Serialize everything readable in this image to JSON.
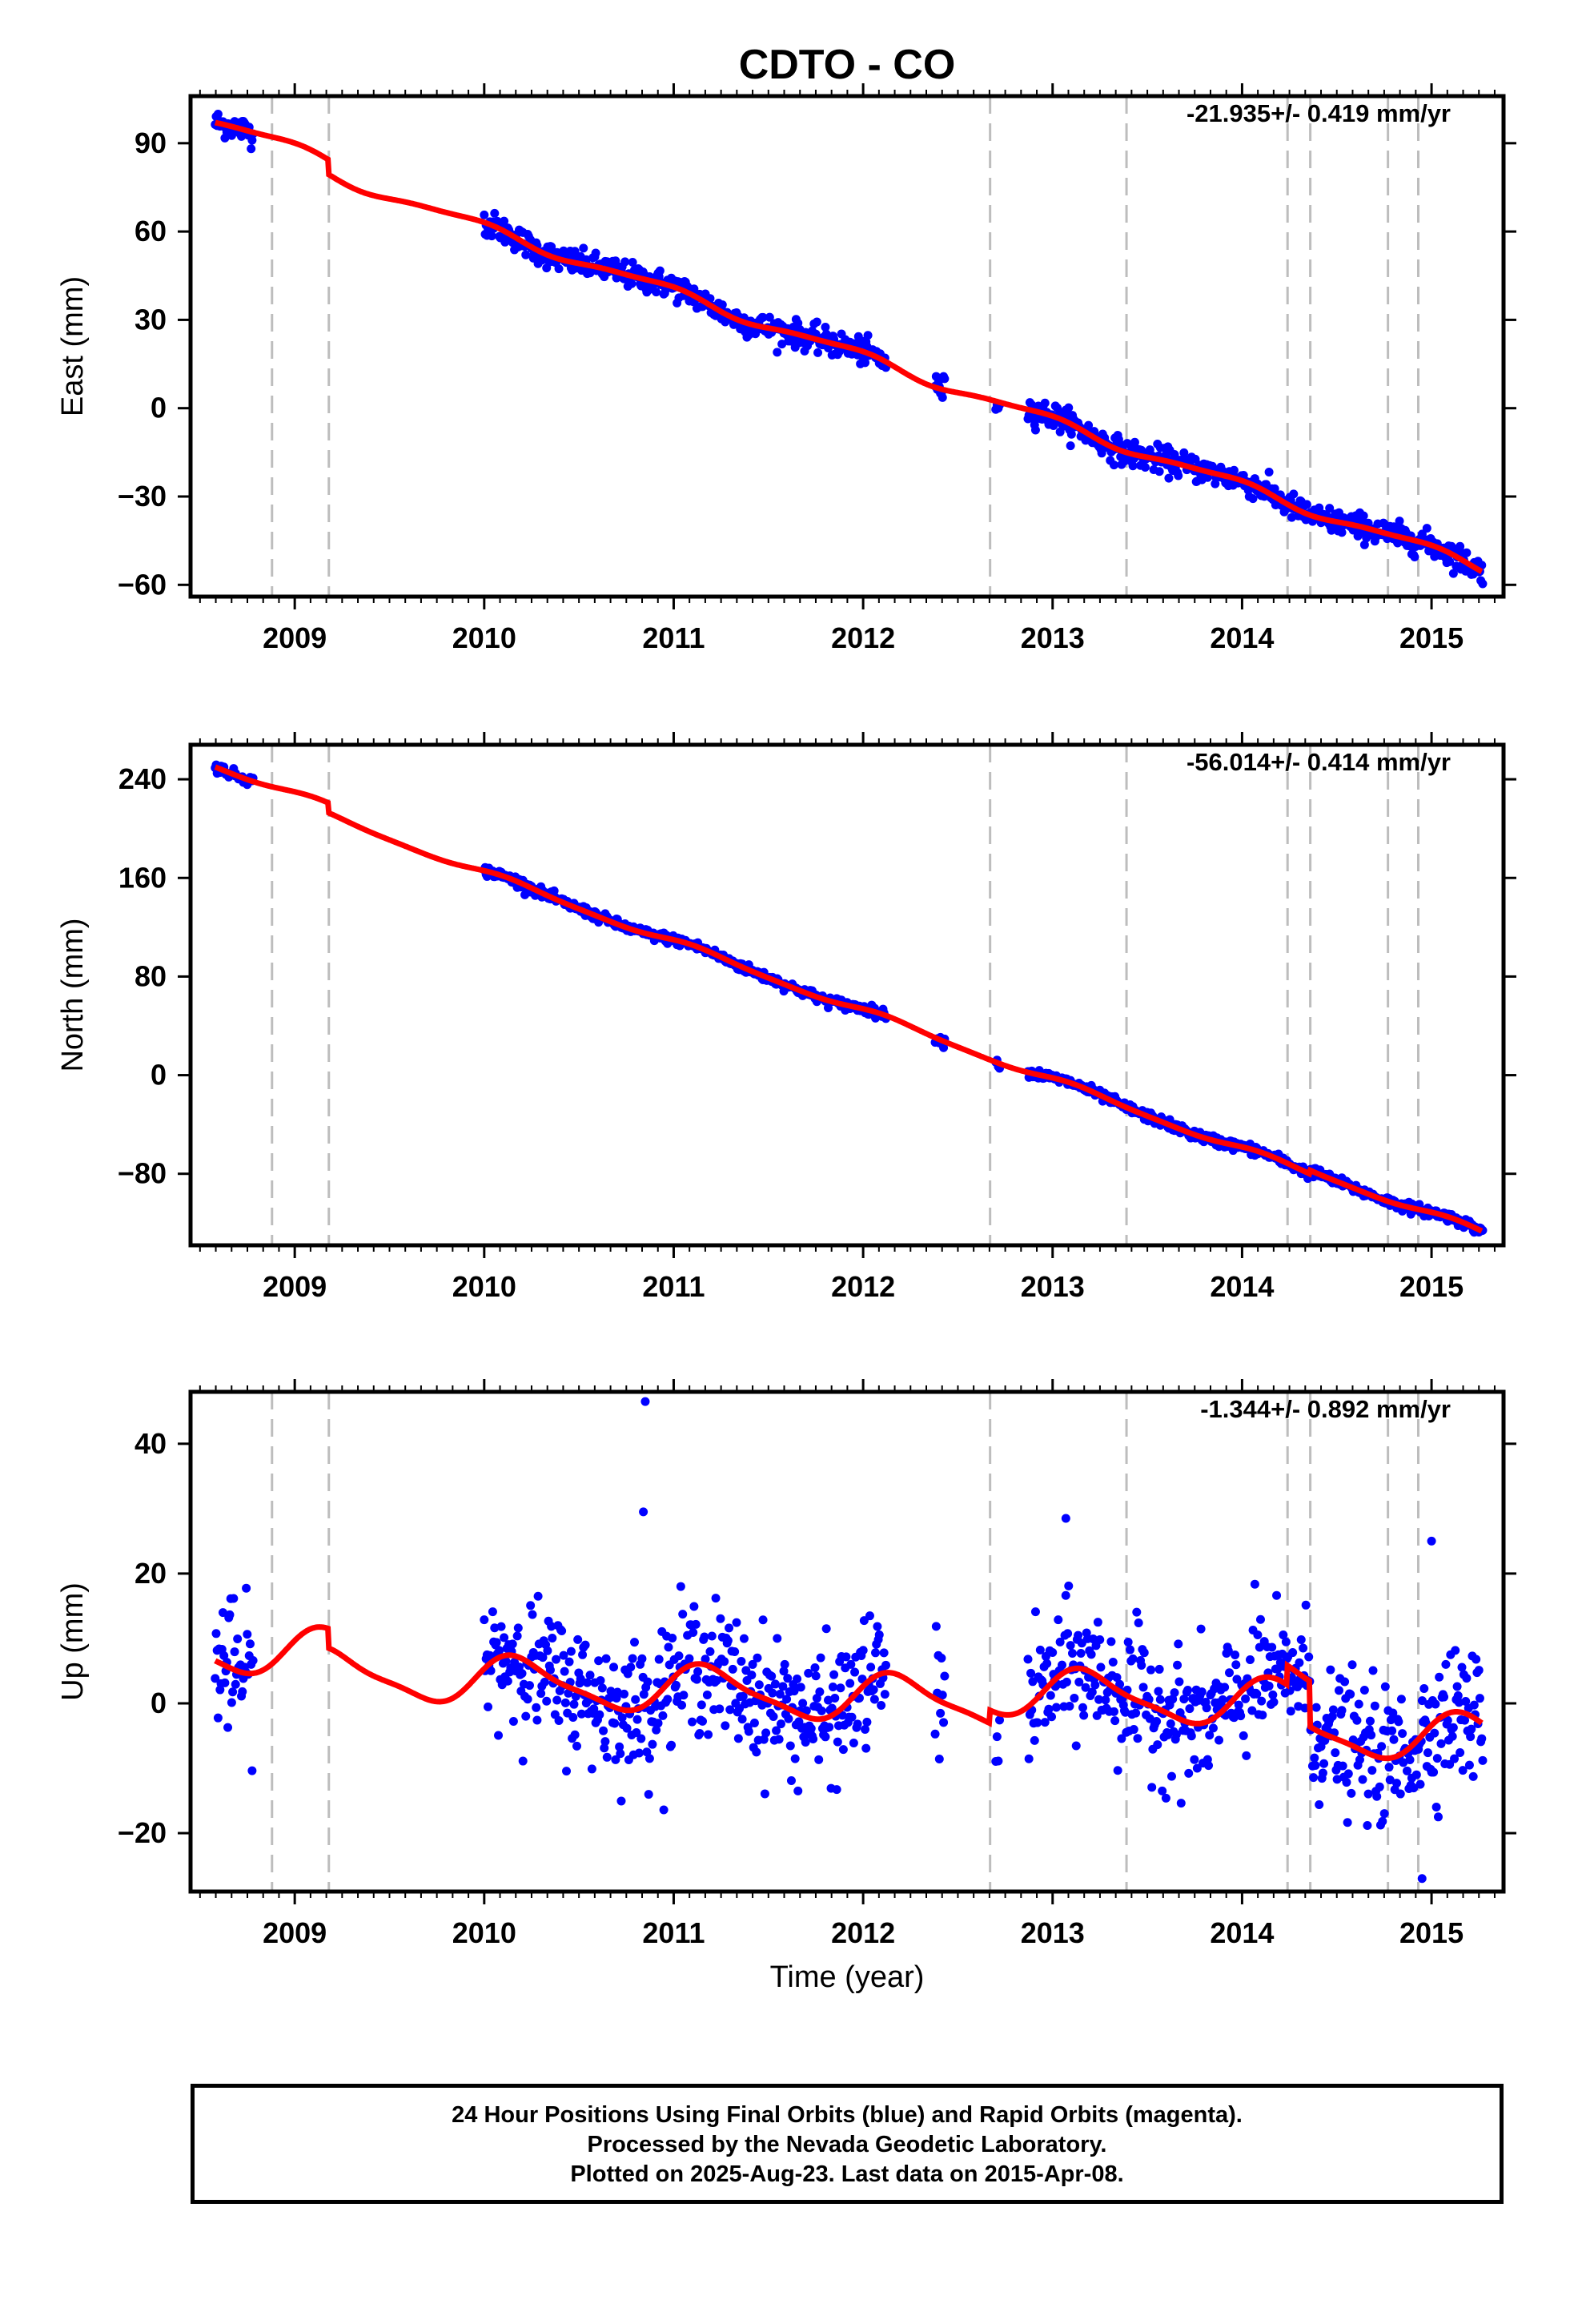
{
  "title": "CDTO - CO",
  "colors": {
    "data": "#0000ff",
    "model": "#ff0000",
    "event_line": "#bdbdbd",
    "frame": "#000000"
  },
  "x_axis": {
    "label": "Time (year)",
    "ticks": [
      2009,
      2010,
      2011,
      2012,
      2013,
      2014,
      2015
    ],
    "tick_labels": [
      "2009",
      "2010",
      "2011",
      "2012",
      "2013",
      "2014",
      "2015"
    ],
    "range": [
      2008.45,
      2015.38
    ],
    "minor_ticks_per_year": 12
  },
  "event_lines": [
    2008.88,
    2009.18,
    2012.67,
    2013.39,
    2014.24,
    2014.36,
    2014.77,
    2014.93
  ],
  "footer": {
    "line1": "24 Hour Positions Using Final Orbits (blue) and Rapid Orbits (magenta).",
    "line2": "Processed by the Nevada Geodetic Laboratory.",
    "line3": "Plotted on 2025-Aug-23. Last data on 2015-Apr-08."
  },
  "chart_data": [
    {
      "type": "scatter",
      "component": "east",
      "ylabel": "East (mm)",
      "rate_label": "-21.935+/- 0.419 mm/yr",
      "ylim": [
        -64,
        106
      ],
      "yticks": [
        -60,
        -30,
        0,
        30,
        60,
        90
      ],
      "ytick_labels": [
        "−60",
        "−30",
        "0",
        "30",
        "60",
        "90"
      ],
      "rate": -21.935,
      "offset_at_2013": 0.5,
      "anchor_year": 2013.0,
      "seasonal": {
        "annual_sin": -0.8,
        "annual_cos": 1.5,
        "semi_sin": 0.4,
        "semi_cos": 0.3
      },
      "steps": [
        {
          "year": 2009.18,
          "size": -5
        }
      ],
      "noise": 2.2,
      "data_segments": [
        [
          2008.58,
          2008.78
        ],
        [
          2010.0,
          2012.12
        ],
        [
          2012.38,
          2012.43
        ],
        [
          2012.7,
          2012.72
        ],
        [
          2012.87,
          2015.27
        ]
      ]
    },
    {
      "type": "scatter",
      "component": "north",
      "ylabel": "North (mm)",
      "rate_label": "-56.014+/- 0.414 mm/yr",
      "ylim": [
        -138,
        268
      ],
      "yticks": [
        -80,
        0,
        80,
        160,
        240
      ],
      "ytick_labels": [
        "−80",
        "0",
        "80",
        "160",
        "240"
      ],
      "rate": -56.014,
      "offset_at_2013": 4,
      "anchor_year": 2013.0,
      "seasonal": {
        "annual_sin": 2.0,
        "annual_cos": 1.5,
        "semi_sin": 0.6,
        "semi_cos": 0.3
      },
      "steps": [
        {
          "year": 2009.18,
          "size": -8
        },
        {
          "year": 2014.36,
          "size": 3
        }
      ],
      "noise": 2.0,
      "data_segments": [
        [
          2008.58,
          2008.78
        ],
        [
          2010.0,
          2012.12
        ],
        [
          2012.38,
          2012.43
        ],
        [
          2012.7,
          2012.72
        ],
        [
          2012.87,
          2015.27
        ]
      ]
    },
    {
      "type": "scatter",
      "component": "up",
      "ylabel": "Up (mm)",
      "rate_label": "-1.344+/- 0.892 mm/yr",
      "ylim": [
        -29,
        48
      ],
      "yticks": [
        -20,
        0,
        20,
        40
      ],
      "ytick_labels": [
        "−20",
        "0",
        "20",
        "40"
      ],
      "rate": -1.344,
      "offset_at_2013": 2.5,
      "anchor_year": 2013.0,
      "seasonal": {
        "annual_sin": 3.2,
        "annual_cos": 1.4,
        "semi_sin": 0.8,
        "semi_cos": 0.4
      },
      "steps": [
        {
          "year": 2009.18,
          "size": -3
        },
        {
          "year": 2012.67,
          "size": 2
        },
        {
          "year": 2014.24,
          "size": 3
        },
        {
          "year": 2014.36,
          "size": -7
        }
      ],
      "noise": 5.0,
      "outliers": [
        {
          "x": 2010.85,
          "y": 46.5
        },
        {
          "x": 2010.84,
          "y": 29.5
        },
        {
          "x": 2013.07,
          "y": 28.5
        },
        {
          "x": 2015.0,
          "y": 25
        },
        {
          "x": 2014.95,
          "y": -27
        }
      ],
      "data_segments": [
        [
          2008.58,
          2008.78
        ],
        [
          2010.0,
          2012.12
        ],
        [
          2012.38,
          2012.43
        ],
        [
          2012.7,
          2012.72
        ],
        [
          2012.87,
          2015.27
        ]
      ]
    }
  ]
}
